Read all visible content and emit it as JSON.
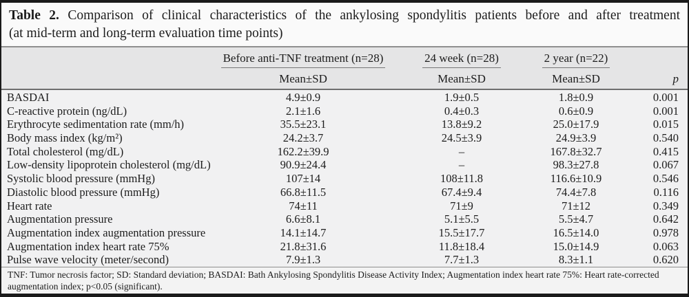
{
  "caption": {
    "label": "Table 2.",
    "line1": "Comparison of clinical characteristics of the ankylosing spondylitis patients before and after treatment",
    "line2": "(at mid-term and long-term evaluation time points)"
  },
  "table": {
    "groups": [
      "Before anti-TNF treatment (n=28)",
      "24 week (n=28)",
      "2 year (n=22)"
    ],
    "subheaders": [
      "Mean±SD",
      "Mean±SD",
      "Mean±SD"
    ],
    "p_header": "p",
    "rows": [
      {
        "label": "BASDAI",
        "before": "4.9±0.9",
        "week24": "1.9±0.5",
        "year2": "1.8±0.9",
        "p": "0.001"
      },
      {
        "label": "C-reactive protein (ng/dL)",
        "before": "2.1±1.6",
        "week24": "0.4±0.3",
        "year2": "0.6±0.9",
        "p": "0.001"
      },
      {
        "label": "Erythrocyte sedimentation rate (mm/h)",
        "before": "35.5±23.1",
        "week24": "13.8±9.2",
        "year2": "25.0±17.9",
        "p": "0.015"
      },
      {
        "label": "Body mass index (kg/m²)",
        "before": "24.2±3.7",
        "week24": "24.5±3.9",
        "year2": "24.9±3.9",
        "p": "0.540"
      },
      {
        "label": "Total cholesterol (mg/dL)",
        "before": "162.2±39.9",
        "week24": "–",
        "year2": "167.8±32.7",
        "p": "0.415"
      },
      {
        "label": "Low-density lipoprotein cholesterol (mg/dL)",
        "before": "90.9±24.4",
        "week24": "–",
        "year2": "98.3±27.8",
        "p": "0.067"
      },
      {
        "label": "Systolic blood pressure (mmHg)",
        "before": "107±14",
        "week24": "108±11.8",
        "year2": "116.6±10.9",
        "p": "0.546"
      },
      {
        "label": "Diastolic blood pressure (mmHg)",
        "before": "66.8±11.5",
        "week24": "67.4±9.4",
        "year2": "74.4±7.8",
        "p": "0.116"
      },
      {
        "label": "Heart rate",
        "before": "74±11",
        "week24": "71±9",
        "year2": "71±12",
        "p": "0.349"
      },
      {
        "label": "Augmentation pressure",
        "before": "6.6±8.1",
        "week24": "5.1±5.5",
        "year2": "5.5±4.7",
        "p": "0.642"
      },
      {
        "label": "Augmentation index augmentation pressure",
        "before": "14.1±14.7",
        "week24": "15.5±17.7",
        "year2": "16.5±14.0",
        "p": "0.978"
      },
      {
        "label": "Augmentation index heart rate 75%",
        "before": "21.8±31.6",
        "week24": "11.8±18.4",
        "year2": "15.0±14.9",
        "p": "0.063"
      },
      {
        "label": "Pulse wave velocity (meter/second)",
        "before": "7.9±1.3",
        "week24": "7.7±1.3",
        "year2": "8.3±1.1",
        "p": "0.620"
      }
    ]
  },
  "footnote": "TNF: Tumor necrosis factor; SD: Standard deviation; BASDAI: Bath Ankylosing Spondylitis Disease Activity Index; Augmentation index heart rate 75%: Heart rate-corrected augmentation index; p<0.05 (significant).",
  "colors": {
    "frame_border": "#1a1a1a",
    "caption_bg": "#fafafa",
    "header_bg": "#e5e5e6",
    "body_bg": "#f1f1f2",
    "rule_gray": "#8e8e8e",
    "text": "#1c1c1c"
  }
}
